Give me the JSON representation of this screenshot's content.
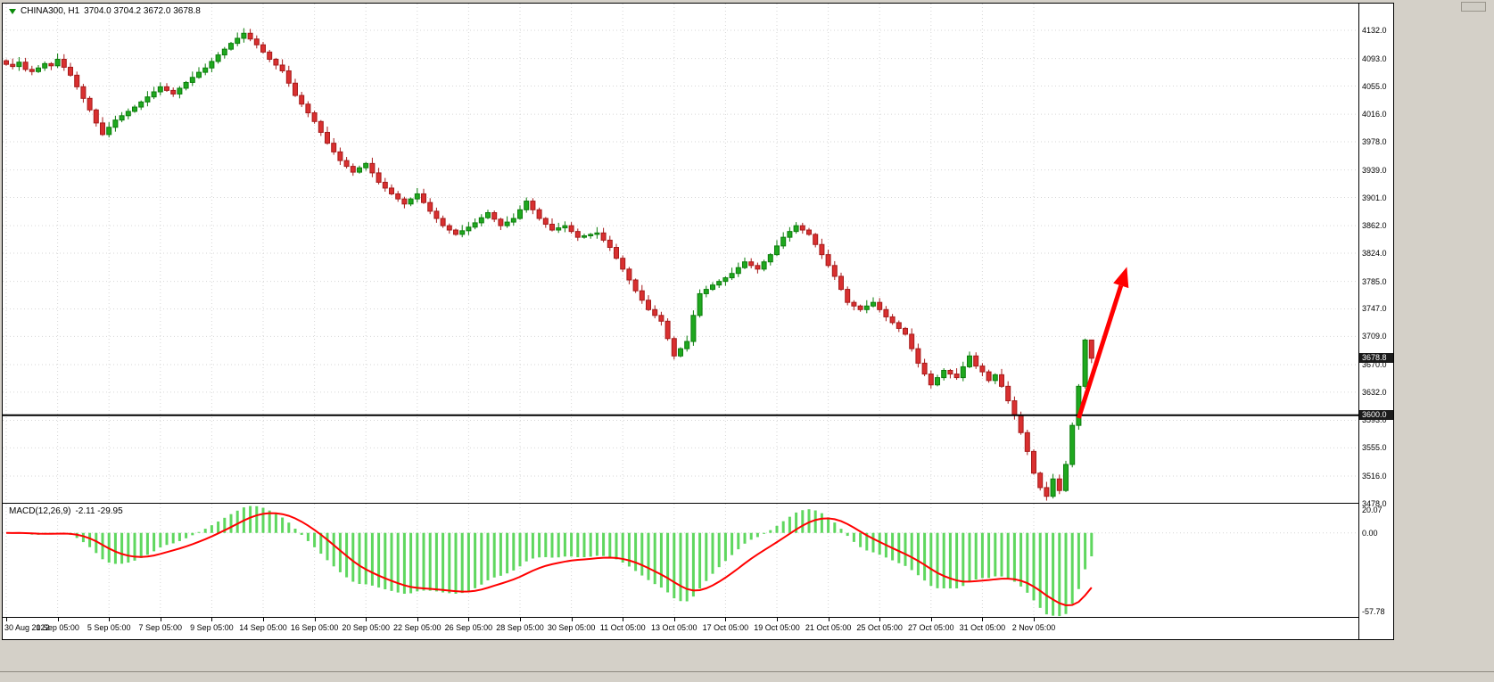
{
  "window": {
    "title_symbol": "CHINA300, H1",
    "title_ohlc": "3704.0 3704.2 3672.0 3678.8"
  },
  "colors": {
    "candle_up": "#1fa81f",
    "candle_up_border": "#0c7d0c",
    "candle_down": "#d93030",
    "candle_down_border": "#a61b1b",
    "macd_bar": "#5fd75f",
    "macd_signal": "#ff0000",
    "arrow": "#ff0000",
    "object_line": "#000000",
    "grid": "#d6d6d6",
    "badge_bg": "#1b1b1b"
  },
  "chart_data": {
    "type": "candlestick-with-macd",
    "symbol": "CHINA300",
    "timeframe": "H1",
    "title": "CHINA300, H1 3704.0 3704.2 3672.0 3678.8",
    "last_bar": {
      "open": 3704.0,
      "high": 3704.2,
      "low": 3672.0,
      "close": 3678.8
    },
    "y_axis": {
      "max": 4169,
      "min": 3479,
      "labels": [
        "4132.0",
        "4093.0",
        "4055.0",
        "4016.0",
        "3978.0",
        "3939.0",
        "3901.0",
        "3862.0",
        "3824.0",
        "3785.0",
        "3747.0",
        "3709.0",
        "3670.0",
        "3632.0",
        "3593.0",
        "3555.0",
        "3516.0",
        "3478.0"
      ]
    },
    "x_axis": {
      "tick_every_bars": 8,
      "labels": [
        "30 Aug 2022",
        "1 Sep 05:00",
        "5 Sep 05:00",
        "7 Sep 05:00",
        "9 Sep 05:00",
        "14 Sep 05:00",
        "16 Sep 05:00",
        "20 Sep 05:00",
        "22 Sep 05:00",
        "26 Sep 05:00",
        "28 Sep 05:00",
        "30 Sep 05:00",
        "11 Oct 05:00",
        "13 Oct 05:00",
        "17 Oct 05:00",
        "19 Oct 05:00",
        "21 Oct 05:00",
        "25 Oct 05:00",
        "27 Oct 05:00",
        "31 Oct 05:00",
        "2 Nov 05:00"
      ]
    },
    "first_open": 4090,
    "closes": [
      4085,
      4082,
      4088,
      4078,
      4075,
      4080,
      4086,
      4083,
      4092,
      4081,
      4070,
      4054,
      4038,
      4022,
      4004,
      3988,
      3998,
      4008,
      4014,
      4020,
      4026,
      4033,
      4040,
      4047,
      4054,
      4049,
      4044,
      4052,
      4060,
      4067,
      4074,
      4080,
      4089,
      4098,
      4106,
      4114,
      4121,
      4128,
      4120,
      4112,
      4102,
      4092,
      4084,
      4076,
      4059,
      4042,
      4030,
      4018,
      4006,
      3991,
      3976,
      3964,
      3952,
      3944,
      3936,
      3942,
      3948,
      3935,
      3922,
      3914,
      3906,
      3899,
      3892,
      3899,
      3906,
      3894,
      3882,
      3872,
      3862,
      3856,
      3850,
      3855,
      3860,
      3866,
      3873,
      3880,
      3871,
      3862,
      3867,
      3872,
      3884,
      3896,
      3884,
      3872,
      3864,
      3856,
      3859,
      3862,
      3854,
      3846,
      3848,
      3850,
      3852,
      3842,
      3832,
      3817,
      3802,
      3787,
      3772,
      3759,
      3746,
      3738,
      3730,
      3706,
      3682,
      3692,
      3702,
      3738,
      3768,
      3774,
      3780,
      3785,
      3790,
      3796,
      3804,
      3812,
      3807,
      3802,
      3812,
      3822,
      3834,
      3846,
      3854,
      3862,
      3856,
      3850,
      3836,
      3822,
      3807,
      3792,
      3774,
      3756,
      3751,
      3746,
      3751,
      3756,
      3746,
      3736,
      3728,
      3720,
      3712,
      3692,
      3672,
      3657,
      3642,
      3652,
      3662,
      3657,
      3652,
      3667,
      3682,
      3668,
      3660,
      3648,
      3656,
      3640,
      3620,
      3600,
      3576,
      3550,
      3520,
      3500,
      3488,
      3512,
      3496,
      3532,
      3586,
      3640,
      3704,
      3678.8
    ],
    "horizontal_line": {
      "price": 3600.0,
      "label": "3600.0"
    },
    "current_price": {
      "value": 3678.8,
      "label": "3678.8"
    },
    "macd": {
      "label": "MACD(12,26,9)",
      "values_text": "-2.11 -29.95",
      "fast": 12,
      "slow": 26,
      "signal": 9,
      "scale_max": 20.07,
      "scale_min": -57.78,
      "axis_labels": [
        "20.07",
        "0.00",
        "-57.78"
      ]
    },
    "annotations": {
      "arrow": {
        "from_bar": 167,
        "from_price": 3596,
        "to_bar": 174.5,
        "to_price": 3805
      }
    }
  }
}
